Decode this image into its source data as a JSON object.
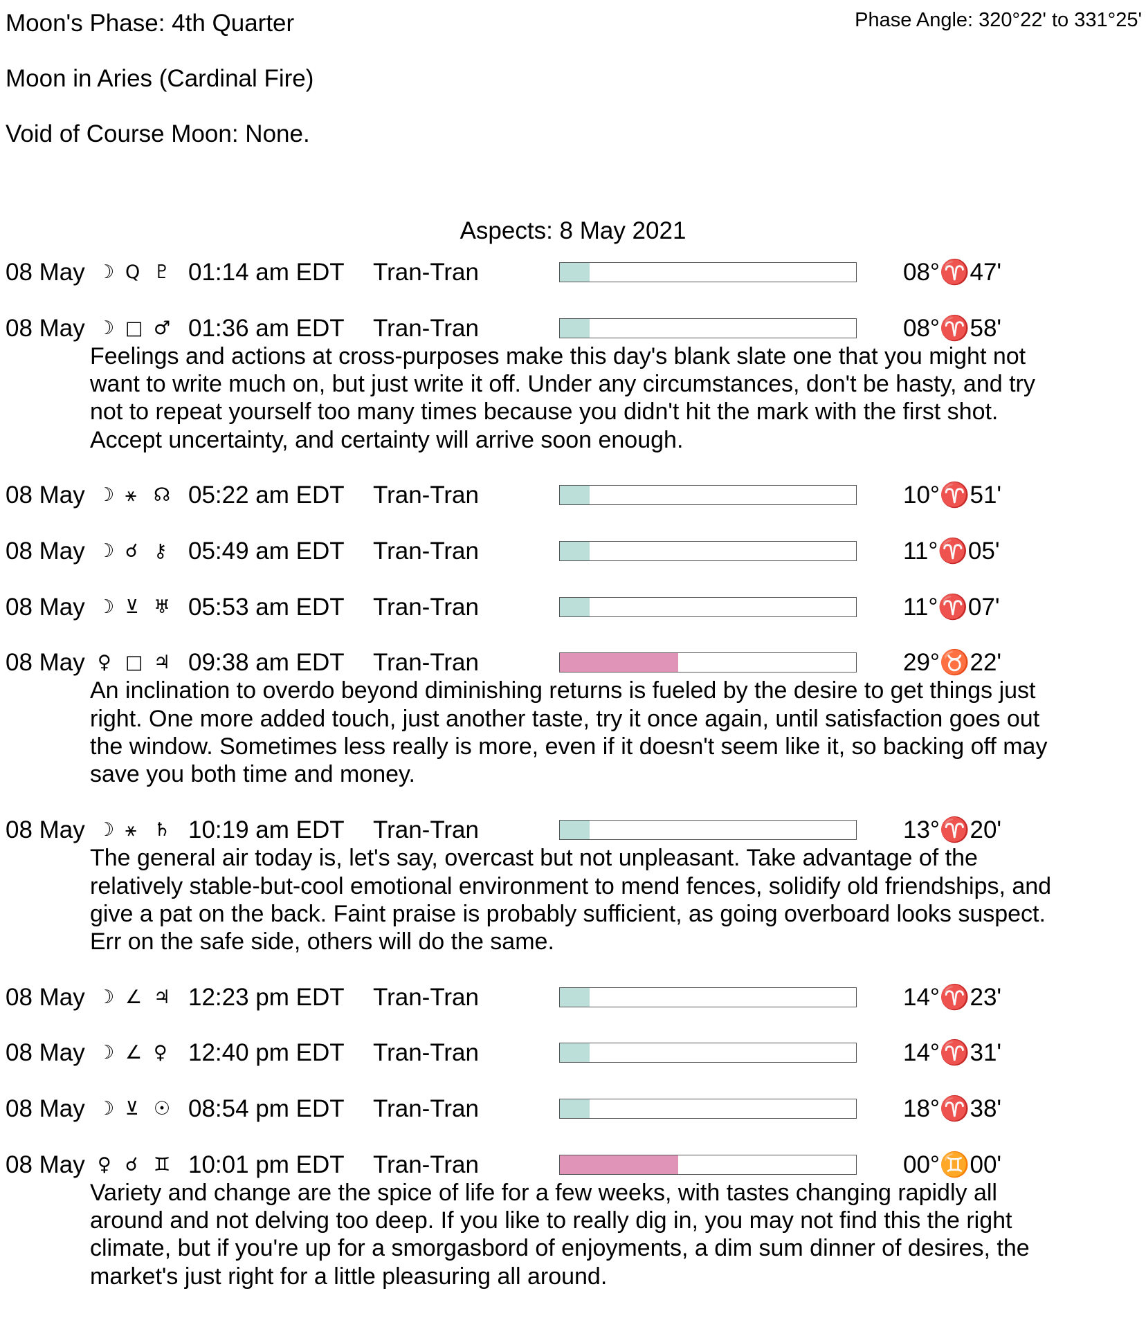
{
  "header": {
    "moon_phase": "Moon's Phase:  4th Quarter",
    "phase_angle": "Phase Angle:  320°22' to 331°25'",
    "moon_sign": "Moon in Aries   (Cardinal Fire)",
    "void_of_course": "Void of Course Moon: None."
  },
  "aspects_title": "Aspects: 8 May 2021",
  "colors": {
    "moon_bar": "#bcdfd9",
    "planet_bar": "#e095b8"
  },
  "aspects": [
    {
      "date": "08 May",
      "p1": "☽",
      "aspect": "Q",
      "p2": "♇",
      "time": "01:14 am EDT",
      "kind": "Tran-Tran",
      "strength": 0.1,
      "color": "#bcdfd9",
      "position": "08°♈47'",
      "desc": []
    },
    {
      "date": "08 May",
      "p1": "☽",
      "aspect": "□",
      "p2": "♂",
      "time": "01:36 am EDT",
      "kind": "Tran-Tran",
      "strength": 0.1,
      "color": "#bcdfd9",
      "position": "08°♈58'",
      "desc": [
        "Feelings and actions at cross-purposes make this day's blank slate one that you might not",
        "want to write much on, but just write it off. Under any circumstances, don't be hasty, and try",
        "not to repeat yourself too many times because you didn't hit the mark with the first shot.",
        "Accept uncertainty, and certainty will arrive soon enough."
      ]
    },
    {
      "date": "08 May",
      "p1": "☽",
      "aspect": "⚹",
      "p2": "☊",
      "time": "05:22 am EDT",
      "kind": "Tran-Tran",
      "strength": 0.1,
      "color": "#bcdfd9",
      "position": "10°♈51'",
      "desc": []
    },
    {
      "date": "08 May",
      "p1": "☽",
      "aspect": "☌",
      "p2": "⚷",
      "time": "05:49 am EDT",
      "kind": "Tran-Tran",
      "strength": 0.1,
      "color": "#bcdfd9",
      "position": "11°♈05'",
      "desc": []
    },
    {
      "date": "08 May",
      "p1": "☽",
      "aspect": "⊻",
      "p2": "♅",
      "time": "05:53 am EDT",
      "kind": "Tran-Tran",
      "strength": 0.1,
      "color": "#bcdfd9",
      "position": "11°♈07'",
      "desc": []
    },
    {
      "date": "08 May",
      "p1": "♀",
      "aspect": "□",
      "p2": "♃",
      "time": "09:38 am EDT",
      "kind": "Tran-Tran",
      "strength": 0.4,
      "color": "#e095b8",
      "position": "29°♉22'",
      "desc": [
        "An inclination to overdo beyond diminishing returns is fueled by the desire to get things just",
        "right. One more added touch, just another taste, try it once again, until satisfaction goes out",
        "the window. Sometimes less really is more, even if it doesn't seem like it, so backing off may",
        "save you both time and money."
      ]
    },
    {
      "date": "08 May",
      "p1": "☽",
      "aspect": "⚹",
      "p2": "♄",
      "time": "10:19 am EDT",
      "kind": "Tran-Tran",
      "strength": 0.1,
      "color": "#bcdfd9",
      "position": "13°♈20'",
      "desc": [
        "The general air today is, let's say, overcast but not unpleasant. Take advantage of the",
        "relatively stable-but-cool emotional environment to mend fences, solidify old friendships, and",
        "give a pat on the back. Faint praise is probably sufficient, as going overboard looks suspect.",
        "Err on the safe side, others will do the same."
      ]
    },
    {
      "date": "08 May",
      "p1": "☽",
      "aspect": "∠",
      "p2": "♃",
      "time": "12:23 pm EDT",
      "kind": "Tran-Tran",
      "strength": 0.1,
      "color": "#bcdfd9",
      "position": "14°♈23'",
      "desc": []
    },
    {
      "date": "08 May",
      "p1": "☽",
      "aspect": "∠",
      "p2": "♀",
      "time": "12:40 pm EDT",
      "kind": "Tran-Tran",
      "strength": 0.1,
      "color": "#bcdfd9",
      "position": "14°♈31'",
      "desc": []
    },
    {
      "date": "08 May",
      "p1": "☽",
      "aspect": "⊻",
      "p2": "☉",
      "time": "08:54 pm EDT",
      "kind": "Tran-Tran",
      "strength": 0.1,
      "color": "#bcdfd9",
      "position": "18°♈38'",
      "desc": []
    },
    {
      "date": "08 May",
      "p1": "♀",
      "aspect": "☌",
      "p2": "♊",
      "time": "10:01 pm EDT",
      "kind": "Tran-Tran",
      "strength": 0.4,
      "color": "#e095b8",
      "position": "00°♊00'",
      "desc": [
        "Variety and change are the spice of life for a few weeks, with tastes changing rapidly all",
        "around and not delving too deep. If you like to really dig in, you may not find this the right",
        "climate, but if you're up for a smorgasbord of enjoyments, a dim sum dinner of desires, the",
        "market's just right for a little pleasuring all around."
      ]
    }
  ]
}
